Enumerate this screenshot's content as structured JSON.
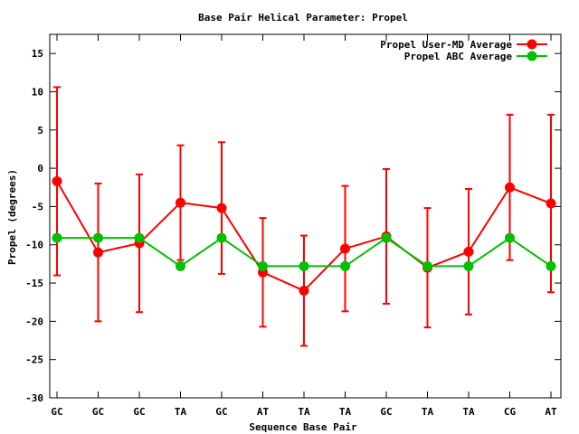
{
  "chart_data": {
    "type": "line",
    "title": "Base Pair Helical Parameter: Propel",
    "xlabel": "Sequence Base Pair",
    "ylabel": "Propel (degrees)",
    "categories": [
      "GC",
      "GC",
      "GC",
      "TA",
      "GC",
      "AT",
      "TA",
      "TA",
      "GC",
      "TA",
      "TA",
      "CG",
      "AT"
    ],
    "ylim": [
      -30,
      17.5
    ],
    "yticks": [
      15,
      10,
      5,
      0,
      -5,
      -10,
      -15,
      -20,
      -25,
      -30
    ],
    "grid": false,
    "legend": "top-right",
    "series": [
      {
        "name": "Propel User-MD Average",
        "color": "#ff0000",
        "values": [
          -1.7,
          -11.0,
          -9.8,
          -4.5,
          -5.2,
          -13.6,
          -16.0,
          -10.5,
          -8.9,
          -13.0,
          -10.9,
          -2.5,
          -4.6
        ],
        "error": [
          12.3,
          9.0,
          9.0,
          7.5,
          8.6,
          7.1,
          7.2,
          8.2,
          8.8,
          7.8,
          8.2,
          9.5,
          11.6
        ]
      },
      {
        "name": "Propel ABC Average",
        "color": "#00c000",
        "values": [
          -9.1,
          -9.1,
          -9.1,
          -12.8,
          -9.1,
          -12.8,
          -12.8,
          -12.8,
          -9.1,
          -12.8,
          -12.8,
          -9.1,
          -12.8
        ]
      }
    ]
  }
}
